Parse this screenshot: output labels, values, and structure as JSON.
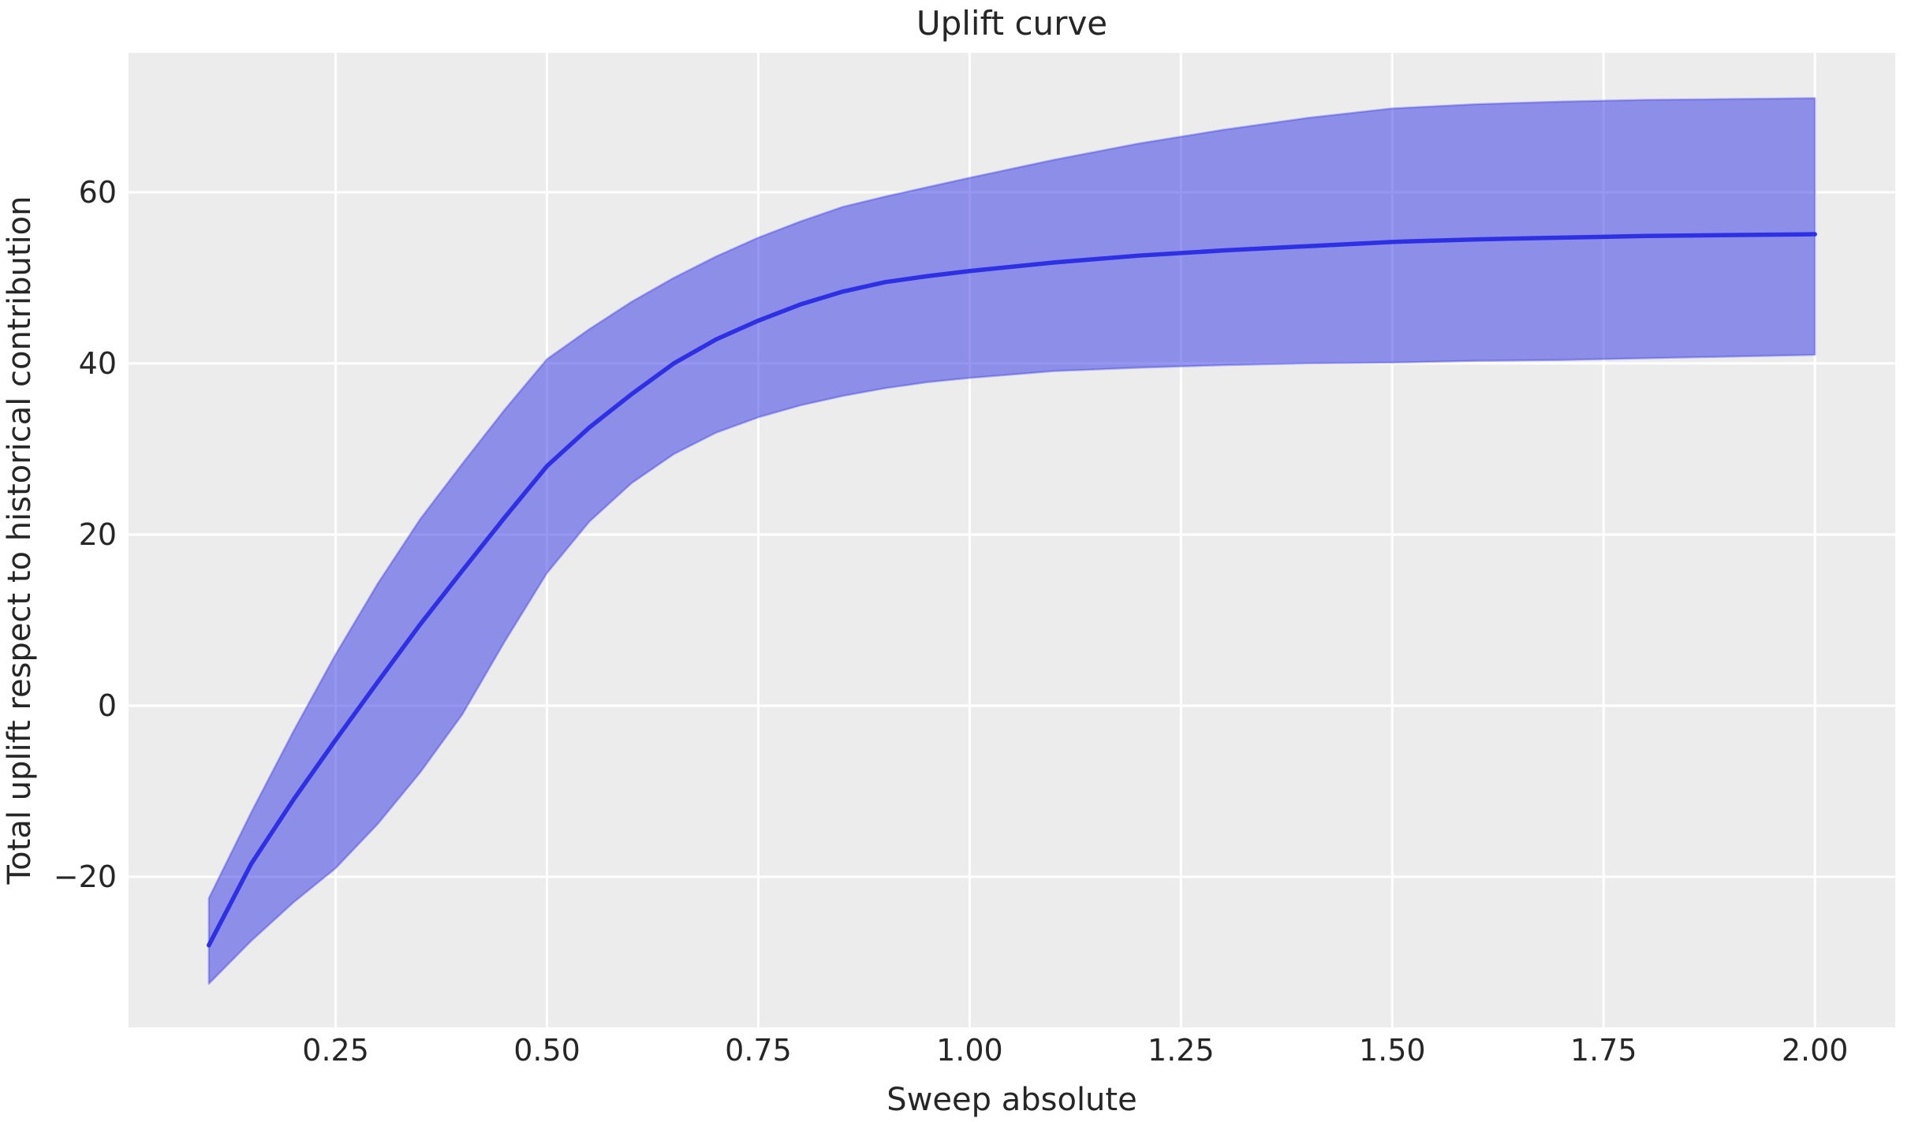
{
  "figure": {
    "title": "Uplift curve"
  },
  "chart_data": {
    "type": "line",
    "title": "Uplift curve",
    "xlabel": "Sweep absolute",
    "ylabel": "Total uplift respect to historical contribution",
    "legend": "none",
    "grid": true,
    "x": [
      0.1,
      0.15,
      0.2,
      0.25,
      0.3,
      0.35,
      0.4,
      0.45,
      0.5,
      0.55,
      0.6,
      0.65,
      0.7,
      0.75,
      0.8,
      0.85,
      0.9,
      0.95,
      1.0,
      1.1,
      1.2,
      1.3,
      1.4,
      1.5,
      1.6,
      1.7,
      1.8,
      1.9,
      2.0
    ],
    "series": [
      {
        "name": "mean-uplift",
        "values": [
          -28.0,
          -18.5,
          -11.0,
          -4.0,
          2.8,
          9.5,
          15.8,
          22.0,
          28.0,
          32.5,
          36.4,
          40.0,
          42.8,
          45.0,
          46.9,
          48.4,
          49.5,
          50.2,
          50.8,
          51.8,
          52.6,
          53.2,
          53.7,
          54.2,
          54.5,
          54.7,
          54.9,
          55.0,
          55.1
        ]
      },
      {
        "name": "ci-upper",
        "values": [
          -22.5,
          -12.5,
          -3.0,
          6.0,
          14.3,
          21.8,
          28.3,
          34.6,
          40.5,
          44.0,
          47.2,
          50.0,
          52.5,
          54.7,
          56.6,
          58.3,
          59.5,
          60.6,
          61.7,
          63.8,
          65.7,
          67.3,
          68.7,
          69.8,
          70.3,
          70.6,
          70.8,
          70.9,
          71.0
        ]
      },
      {
        "name": "ci-lower",
        "values": [
          -32.5,
          -27.5,
          -23.0,
          -19.0,
          -13.8,
          -7.8,
          -1.0,
          7.5,
          15.5,
          21.5,
          26.0,
          29.4,
          31.9,
          33.7,
          35.1,
          36.2,
          37.1,
          37.8,
          38.3,
          39.1,
          39.5,
          39.8,
          40.0,
          40.1,
          40.3,
          40.4,
          40.6,
          40.8,
          41.0
        ]
      }
    ],
    "xlim": [
      0.005,
      2.095
    ],
    "ylim": [
      -37.6,
      76.3
    ],
    "xticks": {
      "values": [
        0.25,
        0.5,
        0.75,
        1.0,
        1.25,
        1.5,
        1.75,
        2.0
      ],
      "labels": [
        "0.25",
        "0.50",
        "0.75",
        "1.00",
        "1.25",
        "1.50",
        "1.75",
        "2.00"
      ]
    },
    "yticks": {
      "values": [
        -20,
        0,
        20,
        40,
        60
      ],
      "labels": [
        "−20",
        "0",
        "20",
        "40",
        "60"
      ]
    },
    "styles": {
      "plot_bg": "#ececec",
      "grid_color": "#ffffff",
      "line_color": "#2e30e4",
      "band_color": "#2e30e4",
      "band_opacity": 0.5,
      "band_edge_opacity": 0.35,
      "text_color": "#262626"
    }
  }
}
